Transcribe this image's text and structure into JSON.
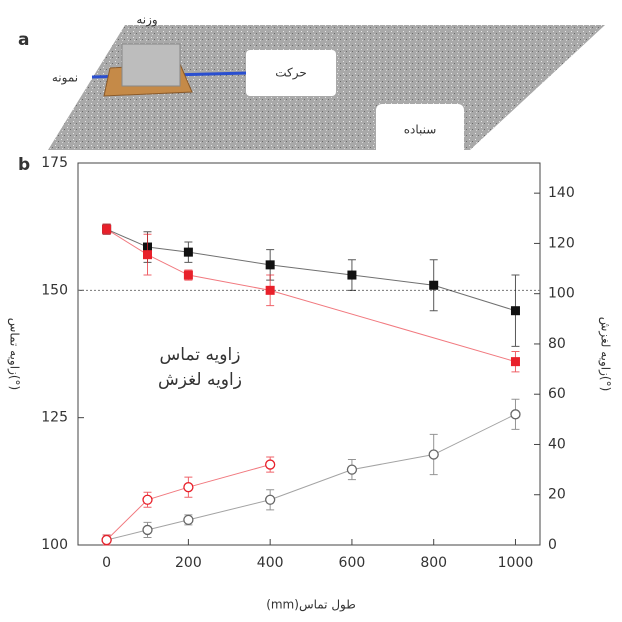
{
  "panel_a": {
    "label": "a",
    "weight": "وزنه",
    "sample": "نمونه",
    "motion": "حرکت",
    "sandpaper": "سنباده"
  },
  "chart_data": {
    "type": "line",
    "panel_label": "b",
    "x_label": "(mm)طول تماس",
    "y_label": "زاویه تماس(°)",
    "y2_label": "زاویه لغزش(°)",
    "annotations": [
      "زاویه تماس",
      "زاویه لغزش"
    ],
    "xlim": [
      -70,
      1060
    ],
    "xticks": [
      0,
      200,
      400,
      600,
      800,
      1000
    ],
    "ylim": [
      100,
      175
    ],
    "yticks": [
      100,
      125,
      150,
      175
    ],
    "y2lim": [
      0,
      152
    ],
    "y2ticks": [
      0,
      20,
      40,
      60,
      80,
      100,
      120,
      140
    ],
    "reference_line": 150,
    "series": [
      {
        "color": "#111111",
        "marker": "square",
        "filled": true,
        "axis": "y",
        "x": [
          0,
          100,
          200,
          400,
          600,
          800,
          1000
        ],
        "values": [
          162,
          158.5,
          157.5,
          155,
          153,
          151,
          146
        ],
        "errors": [
          1,
          3,
          2,
          3,
          3,
          5,
          7
        ]
      },
      {
        "color": "#e8202a",
        "marker": "square",
        "filled": true,
        "axis": "y",
        "x": [
          0,
          100,
          200,
          400,
          1000
        ],
        "values": [
          162,
          157,
          153,
          150,
          136
        ],
        "errors": [
          1,
          4,
          1,
          3,
          2
        ]
      },
      {
        "color": "#666666",
        "marker": "circle",
        "filled": false,
        "axis": "y2",
        "x": [
          0,
          100,
          200,
          400,
          600,
          800,
          1000
        ],
        "values": [
          2,
          6,
          10,
          18,
          30,
          36,
          52
        ],
        "errors": [
          2,
          3,
          2,
          4,
          4,
          8,
          6
        ]
      },
      {
        "color": "#e8202a",
        "marker": "circle",
        "filled": false,
        "axis": "y2",
        "x": [
          0,
          100,
          200,
          400
        ],
        "values": [
          2,
          18,
          23,
          32
        ],
        "errors": [
          2,
          3,
          4,
          3
        ]
      }
    ]
  }
}
